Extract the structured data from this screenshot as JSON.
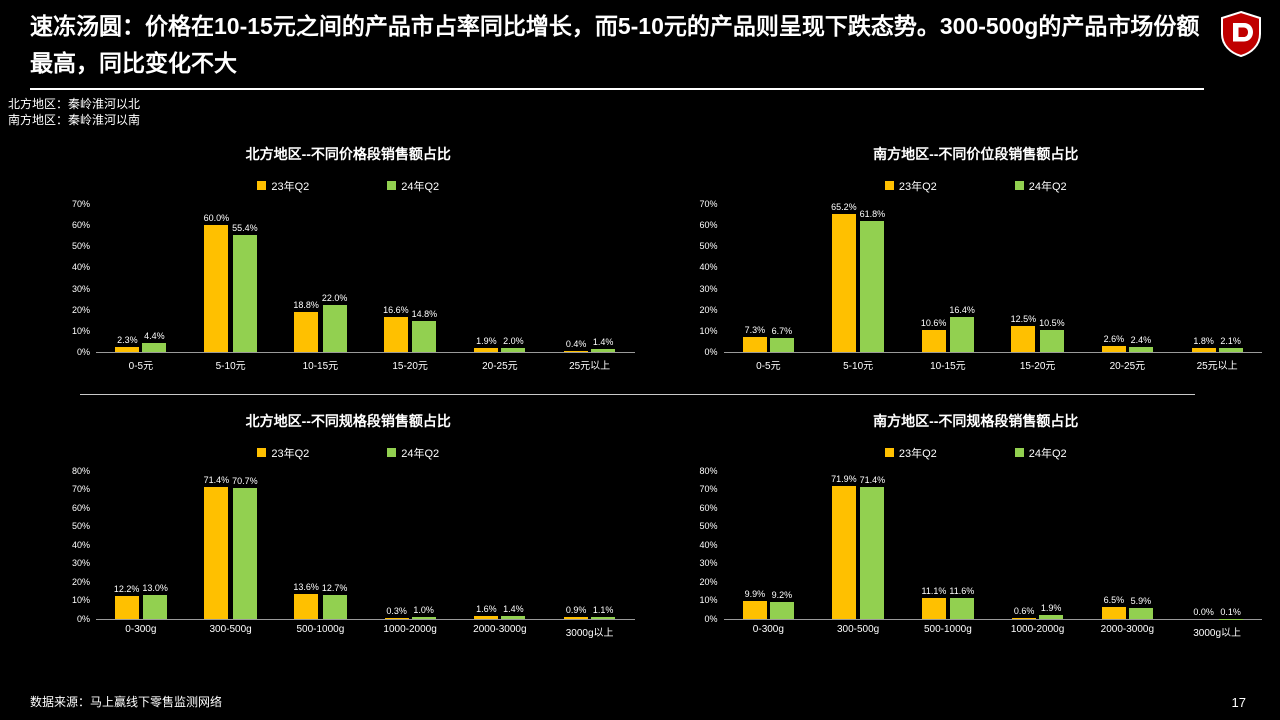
{
  "header": {
    "title": "速冻汤圆：价格在10-15元之间的产品市占率同比增长，而5-10元的产品则呈现下跌态势。300-500g的产品市场份额最高，同比变化不大"
  },
  "notes": {
    "line1": "北方地区：秦岭淮河以北",
    "line2": "南方地区：秦岭淮河以南"
  },
  "legend": [
    "23年Q2",
    "24年Q2"
  ],
  "colors": {
    "series_23": "#FFC000",
    "series_24": "#92D050",
    "background": "#000000",
    "text": "#FFFFFF",
    "logo_red": "#C00000",
    "axis_line": "#9A9A9A"
  },
  "footer": {
    "source": "数据来源：马上赢线下零售监测网络",
    "page_number": "17"
  },
  "chart_data": [
    {
      "type": "bar",
      "title": "北方地区--不同价格段销售额占比",
      "categories": [
        "0-5元",
        "5-10元",
        "10-15元",
        "15-20元",
        "20-25元",
        "25元以上"
      ],
      "series": [
        {
          "name": "23年Q2",
          "values": [
            2.3,
            60.0,
            18.8,
            16.6,
            1.9,
            0.4
          ]
        },
        {
          "name": "24年Q2",
          "values": [
            4.4,
            55.4,
            22.0,
            14.8,
            2.0,
            1.4
          ]
        }
      ],
      "ylim": [
        0,
        70
      ],
      "ytick_step": 10,
      "value_format": "percent",
      "grid": false,
      "legend_position": "top"
    },
    {
      "type": "bar",
      "title": "南方地区--不同价位段销售额占比",
      "categories": [
        "0-5元",
        "5-10元",
        "10-15元",
        "15-20元",
        "20-25元",
        "25元以上"
      ],
      "series": [
        {
          "name": "23年Q2",
          "values": [
            7.3,
            65.2,
            10.6,
            12.5,
            2.6,
            1.8
          ]
        },
        {
          "name": "24年Q2",
          "values": [
            6.7,
            61.8,
            16.4,
            10.5,
            2.4,
            2.1
          ]
        }
      ],
      "ylim": [
        0,
        70
      ],
      "ytick_step": 10,
      "value_format": "percent",
      "grid": false,
      "legend_position": "top"
    },
    {
      "type": "bar",
      "title": "北方地区--不同规格段销售额占比",
      "categories": [
        "0-300g",
        "300-500g",
        "500-1000g",
        "1000-2000g",
        "2000-3000g",
        "3000g以上"
      ],
      "series": [
        {
          "name": "23年Q2",
          "values": [
            12.2,
            71.4,
            13.6,
            0.3,
            1.6,
            0.9
          ]
        },
        {
          "name": "24年Q2",
          "values": [
            13.0,
            70.7,
            12.7,
            1.0,
            1.4,
            1.1
          ]
        }
      ],
      "ylim": [
        0,
        80
      ],
      "ytick_step": 10,
      "value_format": "percent",
      "grid": false,
      "legend_position": "top"
    },
    {
      "type": "bar",
      "title": "南方地区--不同规格段销售额占比",
      "categories": [
        "0-300g",
        "300-500g",
        "500-1000g",
        "1000-2000g",
        "2000-3000g",
        "3000g以上"
      ],
      "series": [
        {
          "name": "23年Q2",
          "values": [
            9.9,
            71.9,
            11.1,
            0.6,
            6.5,
            0.0
          ]
        },
        {
          "name": "24年Q2",
          "values": [
            9.2,
            71.4,
            11.6,
            1.9,
            5.9,
            0.1
          ]
        }
      ],
      "ylim": [
        0,
        80
      ],
      "ytick_step": 10,
      "value_format": "percent",
      "grid": false,
      "legend_position": "top"
    }
  ]
}
